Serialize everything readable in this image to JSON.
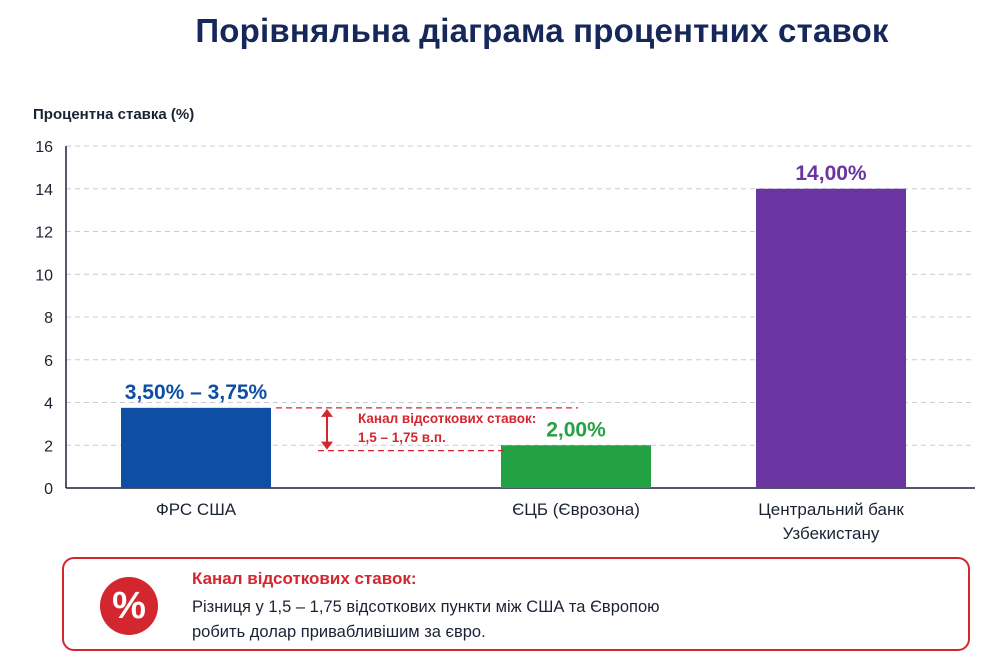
{
  "page_title": "Порівняльна діаграма процентних ставок",
  "chart_data": {
    "type": "bar",
    "title": "",
    "ylabel": "Процентна ставка (%)",
    "xlabel": "",
    "ylim": [
      0,
      16
    ],
    "yticks": [
      0,
      2,
      4,
      6,
      8,
      10,
      12,
      14,
      16
    ],
    "grid": true,
    "categories": [
      [
        "ФРС США"
      ],
      [
        "ЄЦБ (Єврозона)"
      ],
      [
        "Центральний банк",
        "Узбекистану"
      ]
    ],
    "values": [
      3.75,
      2.0,
      14.0
    ],
    "data_labels": [
      "3,50% – 3,75%",
      "2,00%",
      "14,00%"
    ],
    "colors": [
      "#0e4ea3",
      "#23a243",
      "#6a35a0"
    ],
    "label_colors": [
      "#0e4ea3",
      "#23a243",
      "#6a35a0"
    ],
    "annotation": {
      "lines": [
        "Канал відсоткових ставок:",
        "1,5 – 1,75 в.п."
      ],
      "from": 3.75,
      "to": 1.75,
      "color": "#d4262f"
    }
  },
  "callout": {
    "icon": "percent-icon",
    "symbol": "%",
    "heading": "Канал відсоткових ставок:",
    "line1": "Різниця у 1,5 – 1,75 відсоткових пункти між США та Європою",
    "line2": "робить долар привабливішим за євро."
  }
}
